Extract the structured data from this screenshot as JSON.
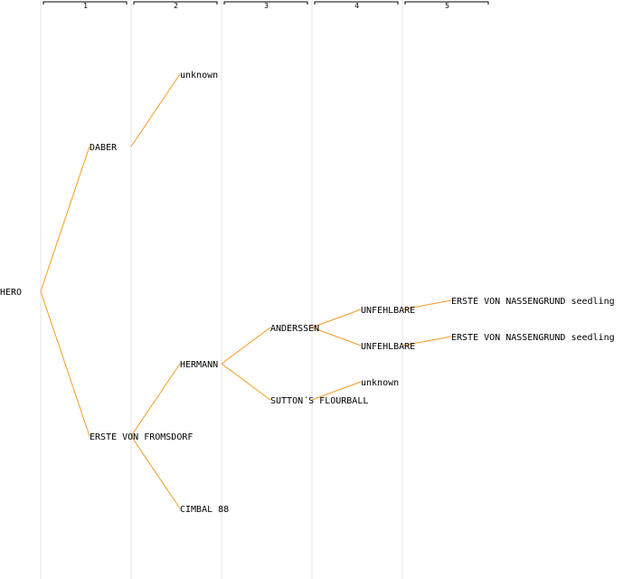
{
  "colors": {
    "edge": "#f59a23",
    "grid": "#e6e6e6"
  },
  "generations": [
    "1",
    "2",
    "3",
    "4",
    "5"
  ],
  "pedigree": {
    "root": "HERO",
    "nodes": [
      {
        "id": "n0",
        "label": "HERO",
        "gen": 0,
        "parent": null
      },
      {
        "id": "n1",
        "label": "DABER",
        "gen": 1,
        "parent": "n0"
      },
      {
        "id": "n2",
        "label": "ERSTE VON FROMSDORF",
        "gen": 1,
        "parent": "n0"
      },
      {
        "id": "n3",
        "label": "unknown",
        "gen": 2,
        "parent": "n1"
      },
      {
        "id": "n4",
        "label": "HERMANN",
        "gen": 2,
        "parent": "n2"
      },
      {
        "id": "n5",
        "label": "CIMBAL 88",
        "gen": 2,
        "parent": "n2"
      },
      {
        "id": "n6",
        "label": "ANDERSSEN",
        "gen": 3,
        "parent": "n4"
      },
      {
        "id": "n7",
        "label": "SUTTON´S FLOURBALL",
        "gen": 3,
        "parent": "n4"
      },
      {
        "id": "n8",
        "label": "UNFEHLBARE",
        "gen": 4,
        "parent": "n6"
      },
      {
        "id": "n9",
        "label": "UNFEHLBARE",
        "gen": 4,
        "parent": "n6"
      },
      {
        "id": "n10",
        "label": "unknown",
        "gen": 4,
        "parent": "n7"
      },
      {
        "id": "n11",
        "label": "ERSTE VON NASSENGRUND seedling",
        "gen": 5,
        "parent": "n8"
      },
      {
        "id": "n12",
        "label": "ERSTE VON NASSENGRUND seedling",
        "gen": 5,
        "parent": "n9"
      }
    ]
  }
}
